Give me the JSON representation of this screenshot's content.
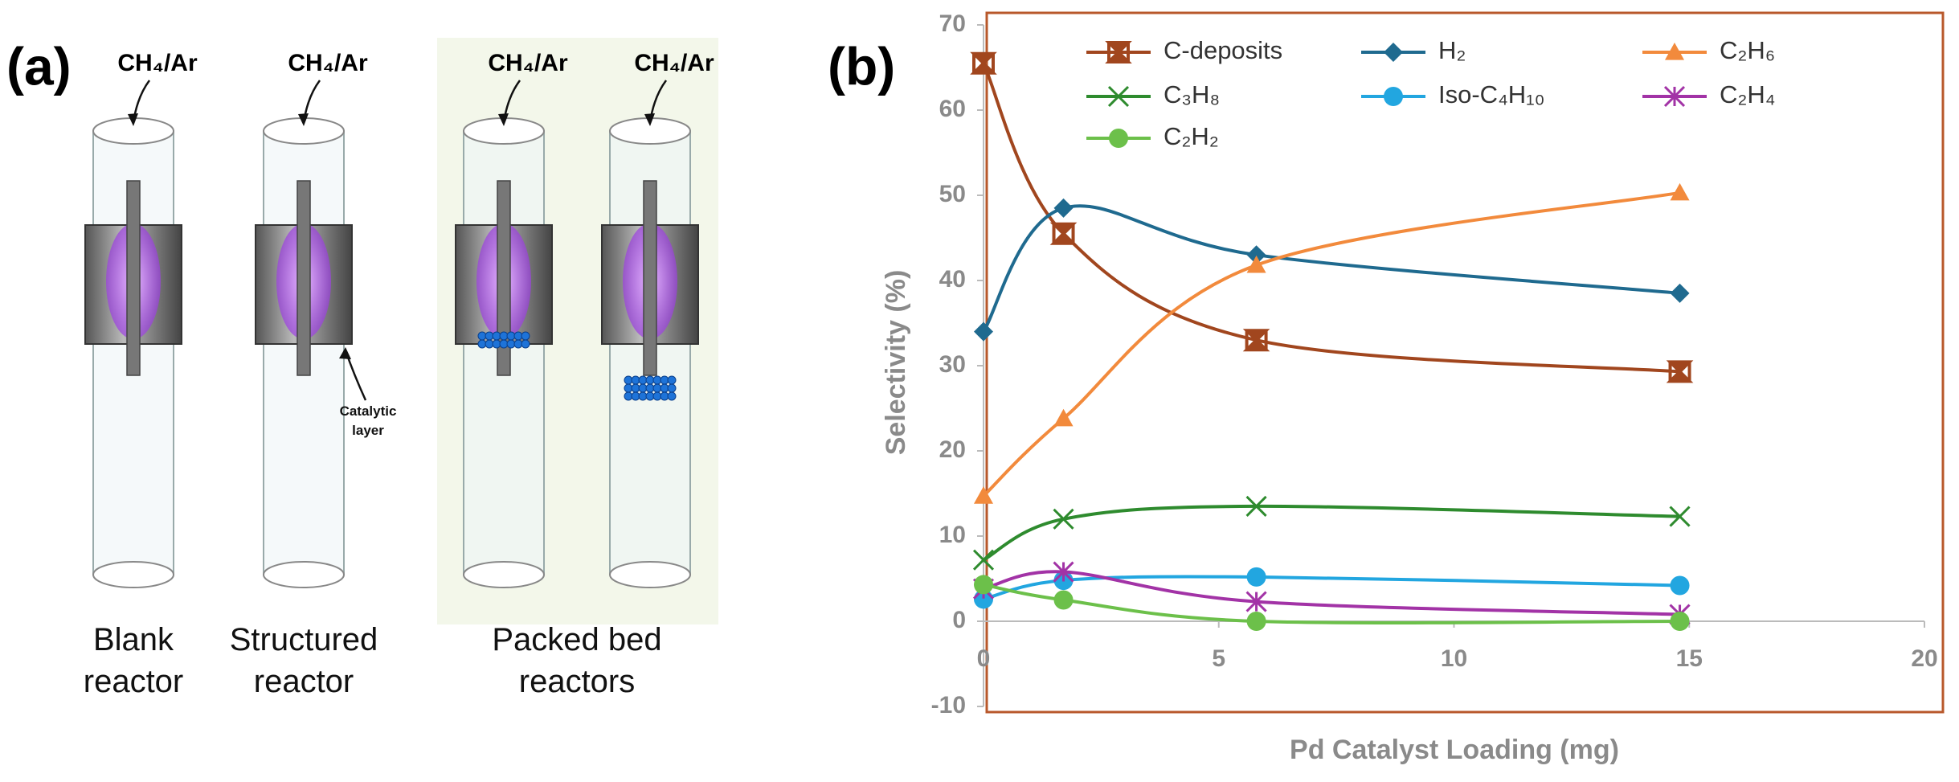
{
  "panel_a": {
    "label": "(a)",
    "inlet_labels": [
      "CH₄/Ar",
      "CH₄/Ar",
      "CH₄/Ar",
      "CH₄/Ar"
    ],
    "annotation": "Catalytic layer",
    "captions": [
      "Blank reactor",
      "Structured reactor",
      "Packed bed reactors"
    ]
  },
  "chart_data": {
    "type": "line",
    "panel_label": "(b)",
    "xlabel": "Pd Catalyst Loading (mg)",
    "ylabel": "Selectivity (%)",
    "x": [
      0,
      1.7,
      5.8,
      14.8
    ],
    "xlim": [
      0,
      20
    ],
    "xticks": [
      0,
      5,
      10,
      15,
      20
    ],
    "ylim": [
      -10,
      70
    ],
    "yticks": [
      -10,
      0,
      10,
      20,
      30,
      40,
      50,
      60,
      70
    ],
    "grid": false,
    "smooth": true,
    "series": [
      {
        "name": "C-deposits",
        "color": "#a1461e",
        "marker": "bowtie",
        "values": [
          65.5,
          45.5,
          33,
          29.3
        ]
      },
      {
        "name": "H₂",
        "color": "#1f6a8f",
        "marker": "diamond",
        "values": [
          34,
          48.5,
          43,
          38.5
        ]
      },
      {
        "name": "C₂H₆",
        "color": "#f28a3c",
        "marker": "triangle",
        "values": [
          14.7,
          23.8,
          41.8,
          50.3
        ]
      },
      {
        "name": "C₃H₈",
        "color": "#2e8b2e",
        "marker": "x",
        "values": [
          7.2,
          12,
          13.5,
          12.3
        ]
      },
      {
        "name": "Iso-C₄H₁₀",
        "color": "#22a6e0",
        "marker": "circle",
        "values": [
          2.6,
          4.8,
          5.2,
          4.2
        ]
      },
      {
        "name": "C₂H₄",
        "color": "#a233a6",
        "marker": "asterisk",
        "values": [
          3.8,
          5.8,
          2.3,
          0.8
        ]
      },
      {
        "name": "C₂H₂",
        "color": "#6cc04a",
        "marker": "circle",
        "values": [
          4.3,
          2.5,
          0,
          0
        ]
      }
    ]
  }
}
